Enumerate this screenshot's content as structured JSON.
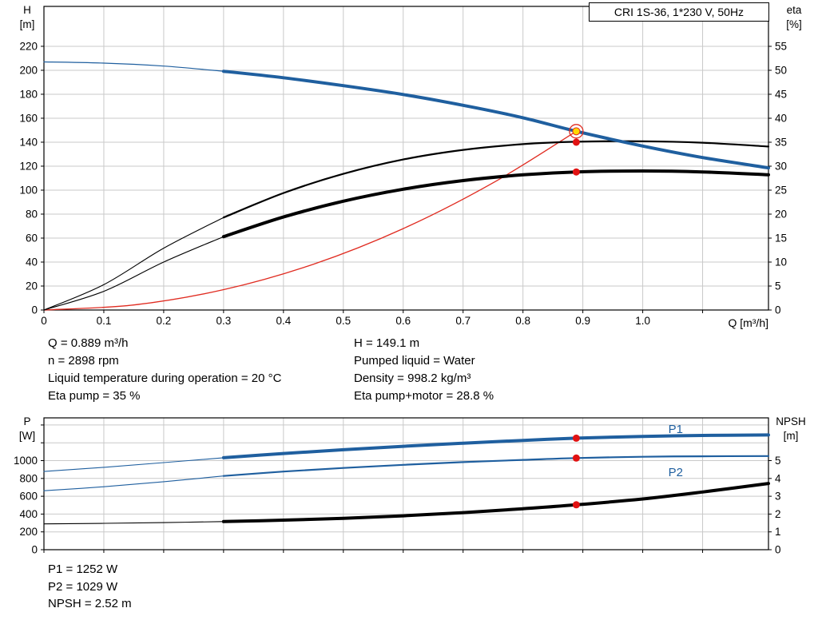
{
  "colors": {
    "curve_blue": "#1f5f9f",
    "curve_black": "#000000",
    "curve_red": "#e02b20",
    "marker_red": "#e11212",
    "marker_yellow": "#ffd800",
    "grid": "#c9c9c9",
    "axis": "#000000"
  },
  "top_info": {
    "left": [
      "Q = 0.889 m³/h",
      "n = 2898 rpm",
      "Liquid temperature during operation = 20 °C",
      "Eta pump = 35 %"
    ],
    "right": [
      "H = 149.1 m",
      "Pumped liquid = Water",
      "Density = 998.2 kg/m³",
      "Eta pump+motor = 28.8 %"
    ]
  },
  "bottom_info": [
    "P1 = 1252 W",
    "P2 = 1029 W",
    "NPSH = 2.52 m"
  ],
  "chart_data": [
    {
      "name": "hq-eta-chart",
      "type": "line",
      "title": "CRI 1S-36, 1*230 V, 50Hz",
      "xlabel": "Q [m³/h]",
      "ylabel_left": [
        "H",
        "[m]"
      ],
      "ylabel_right": [
        "eta",
        "[%]"
      ],
      "xlim": [
        0,
        1.21
      ],
      "ylim_left": [
        0,
        253.3
      ],
      "ylim_right": [
        0,
        63.33
      ],
      "grid": true,
      "legend": "none",
      "xticks": [
        {
          "v": 0,
          "l": "0"
        },
        {
          "v": 0.1,
          "l": "0.1"
        },
        {
          "v": 0.2,
          "l": "0.2"
        },
        {
          "v": 0.3,
          "l": "0.3"
        },
        {
          "v": 0.4,
          "l": "0.4"
        },
        {
          "v": 0.5,
          "l": "0.5"
        },
        {
          "v": 0.6,
          "l": "0.6"
        },
        {
          "v": 0.7,
          "l": "0.7"
        },
        {
          "v": 0.8,
          "l": "0.8"
        },
        {
          "v": 0.9,
          "l": "0.9"
        },
        {
          "v": 1.0,
          "l": "1.0"
        },
        {
          "v": 1.1,
          "l": ""
        }
      ],
      "yticks_left": [
        {
          "v": 0,
          "l": "0"
        },
        {
          "v": 20,
          "l": "20"
        },
        {
          "v": 40,
          "l": "40"
        },
        {
          "v": 60,
          "l": "60"
        },
        {
          "v": 80,
          "l": "80"
        },
        {
          "v": 100,
          "l": "100"
        },
        {
          "v": 120,
          "l": "120"
        },
        {
          "v": 140,
          "l": "140"
        },
        {
          "v": 160,
          "l": "160"
        },
        {
          "v": 180,
          "l": "180"
        },
        {
          "v": 200,
          "l": "200"
        },
        {
          "v": 220,
          "l": "220"
        }
      ],
      "yticks_right": [
        {
          "v": 0,
          "l": "0"
        },
        {
          "v": 5,
          "l": "5"
        },
        {
          "v": 10,
          "l": "10"
        },
        {
          "v": 15,
          "l": "15"
        },
        {
          "v": 20,
          "l": "20"
        },
        {
          "v": 25,
          "l": "25"
        },
        {
          "v": 30,
          "l": "30"
        },
        {
          "v": 35,
          "l": "35"
        },
        {
          "v": 40,
          "l": "40"
        },
        {
          "v": 45,
          "l": "45"
        },
        {
          "v": 50,
          "l": "50"
        },
        {
          "v": 55,
          "l": "55"
        }
      ],
      "series": [
        {
          "name": "system-curve",
          "axis": "left",
          "color": "#e02b20",
          "width": 1.3,
          "points": [
            [
              0,
              0
            ],
            [
              0.15,
              4.2
            ],
            [
              0.3,
              17
            ],
            [
              0.45,
              38.2
            ],
            [
              0.6,
              67.9
            ],
            [
              0.75,
              106.1
            ],
            [
              0.889,
              149.1
            ]
          ]
        },
        {
          "name": "eta-pump-curve-thin",
          "axis": "right",
          "color": "#000000",
          "width": 1.1,
          "points": [
            [
              0,
              0
            ],
            [
              0.1,
              5.3
            ],
            [
              0.2,
              12.9
            ],
            [
              0.3,
              19.3
            ]
          ]
        },
        {
          "name": "eta-pump-curve",
          "axis": "right",
          "color": "#000000",
          "width": 2.2,
          "points": [
            [
              0.3,
              19.3
            ],
            [
              0.4,
              24.4
            ],
            [
              0.5,
              28.4
            ],
            [
              0.6,
              31.4
            ],
            [
              0.7,
              33.4
            ],
            [
              0.8,
              34.6
            ],
            [
              0.889,
              35.1
            ],
            [
              1.0,
              35.2
            ],
            [
              1.1,
              34.9
            ],
            [
              1.21,
              34.1
            ]
          ]
        },
        {
          "name": "eta-pump-motor-curve-thin",
          "axis": "right",
          "color": "#000000",
          "width": 1.1,
          "points": [
            [
              0,
              0
            ],
            [
              0.1,
              3.9
            ],
            [
              0.2,
              10
            ],
            [
              0.3,
              15.3
            ]
          ]
        },
        {
          "name": "eta-pump-motor-curve",
          "axis": "right",
          "color": "#000000",
          "width": 4,
          "points": [
            [
              0.3,
              15.3
            ],
            [
              0.4,
              19.4
            ],
            [
              0.5,
              22.7
            ],
            [
              0.6,
              25.2
            ],
            [
              0.7,
              27.0
            ],
            [
              0.8,
              28.2
            ],
            [
              0.889,
              28.8
            ],
            [
              1.0,
              29.0
            ],
            [
              1.1,
              28.8
            ],
            [
              1.21,
              28.2
            ]
          ]
        },
        {
          "name": "hq-curve-thin",
          "axis": "left",
          "color": "#1f5f9f",
          "width": 1.2,
          "points": [
            [
              0,
              207
            ],
            [
              0.1,
              206
            ],
            [
              0.2,
              203.5
            ],
            [
              0.3,
              199.2
            ]
          ]
        },
        {
          "name": "hq-curve",
          "axis": "left",
          "color": "#1f5f9f",
          "width": 4,
          "points": [
            [
              0.3,
              199.2
            ],
            [
              0.4,
              193.8
            ],
            [
              0.5,
              187.2
            ],
            [
              0.6,
              179.8
            ],
            [
              0.7,
              170.8
            ],
            [
              0.8,
              160.4
            ],
            [
              0.889,
              149.1
            ],
            [
              1.0,
              136.8
            ],
            [
              1.1,
              127.2
            ],
            [
              1.21,
              118.6
            ]
          ]
        }
      ],
      "markers": [
        {
          "name": "eta-pump-point",
          "x": 0.889,
          "y": 35,
          "axis": "right",
          "style": "dot"
        },
        {
          "name": "eta-pump-motor-point",
          "x": 0.889,
          "y": 28.8,
          "axis": "right",
          "style": "dot"
        },
        {
          "name": "duty-point",
          "x": 0.889,
          "y": 149.1,
          "axis": "left",
          "style": "duty"
        }
      ],
      "annotations": []
    },
    {
      "name": "power-npsh-chart",
      "type": "line",
      "title": "",
      "xlabel": "",
      "ylabel_left": [
        "P",
        "[W]"
      ],
      "ylabel_right": [
        "NPSH",
        "[m]"
      ],
      "xlim": [
        0,
        1.21
      ],
      "ylim_left": [
        0,
        1480
      ],
      "ylim_right": [
        0,
        7.4
      ],
      "grid": true,
      "legend": "inline",
      "xticks": [
        {
          "v": 0,
          "l": ""
        },
        {
          "v": 0.1,
          "l": ""
        },
        {
          "v": 0.2,
          "l": ""
        },
        {
          "v": 0.3,
          "l": ""
        },
        {
          "v": 0.4,
          "l": ""
        },
        {
          "v": 0.5,
          "l": ""
        },
        {
          "v": 0.6,
          "l": ""
        },
        {
          "v": 0.7,
          "l": ""
        },
        {
          "v": 0.8,
          "l": ""
        },
        {
          "v": 0.9,
          "l": ""
        },
        {
          "v": 1.0,
          "l": ""
        },
        {
          "v": 1.1,
          "l": ""
        }
      ],
      "yticks_left": [
        {
          "v": 0,
          "l": "0"
        },
        {
          "v": 200,
          "l": "200"
        },
        {
          "v": 400,
          "l": "400"
        },
        {
          "v": 600,
          "l": "600"
        },
        {
          "v": 800,
          "l": "800"
        },
        {
          "v": 1000,
          "l": "1000"
        },
        {
          "v": 1200,
          "l": ""
        },
        {
          "v": 1400,
          "l": ""
        }
      ],
      "yticks_right": [
        {
          "v": 0,
          "l": "0"
        },
        {
          "v": 1,
          "l": "1"
        },
        {
          "v": 2,
          "l": "2"
        },
        {
          "v": 3,
          "l": "3"
        },
        {
          "v": 4,
          "l": "4"
        },
        {
          "v": 5,
          "l": "5"
        }
      ],
      "series": [
        {
          "name": "p1-curve-thin",
          "axis": "left",
          "color": "#1f5f9f",
          "width": 1.1,
          "points": [
            [
              0,
              878
            ],
            [
              0.1,
              925
            ],
            [
              0.2,
              978
            ],
            [
              0.3,
              1032
            ]
          ]
        },
        {
          "name": "p1-curve",
          "axis": "left",
          "color": "#1f5f9f",
          "width": 4,
          "points": [
            [
              0.3,
              1032
            ],
            [
              0.4,
              1080
            ],
            [
              0.5,
              1122
            ],
            [
              0.6,
              1161
            ],
            [
              0.7,
              1196
            ],
            [
              0.8,
              1227
            ],
            [
              0.889,
              1252
            ],
            [
              1.0,
              1272
            ],
            [
              1.1,
              1283
            ],
            [
              1.21,
              1288
            ]
          ]
        },
        {
          "name": "p2-curve-thin",
          "axis": "left",
          "color": "#1f5f9f",
          "width": 1.1,
          "points": [
            [
              0,
              662
            ],
            [
              0.1,
              707
            ],
            [
              0.2,
              763
            ],
            [
              0.3,
              828
            ]
          ]
        },
        {
          "name": "p2-curve",
          "axis": "left",
          "color": "#1f5f9f",
          "width": 2.2,
          "points": [
            [
              0.3,
              828
            ],
            [
              0.4,
              877
            ],
            [
              0.5,
              918
            ],
            [
              0.6,
              953
            ],
            [
              0.7,
              983
            ],
            [
              0.8,
              1008
            ],
            [
              0.889,
              1029
            ],
            [
              1.0,
              1043
            ],
            [
              1.1,
              1049
            ],
            [
              1.21,
              1051
            ]
          ]
        },
        {
          "name": "npsh-curve-thin",
          "axis": "right",
          "color": "#000000",
          "width": 1.1,
          "points": [
            [
              0,
              1.45
            ],
            [
              0.1,
              1.48
            ],
            [
              0.2,
              1.52
            ],
            [
              0.3,
              1.58
            ]
          ]
        },
        {
          "name": "npsh-curve",
          "axis": "right",
          "color": "#000000",
          "width": 4,
          "points": [
            [
              0.3,
              1.58
            ],
            [
              0.4,
              1.66
            ],
            [
              0.5,
              1.76
            ],
            [
              0.6,
              1.9
            ],
            [
              0.7,
              2.08
            ],
            [
              0.8,
              2.3
            ],
            [
              0.889,
              2.52
            ],
            [
              1.0,
              2.85
            ],
            [
              1.1,
              3.24
            ],
            [
              1.21,
              3.72
            ]
          ]
        }
      ],
      "markers": [
        {
          "name": "p1-point",
          "x": 0.889,
          "y": 1252,
          "axis": "left",
          "style": "dot"
        },
        {
          "name": "p2-point",
          "x": 0.889,
          "y": 1029,
          "axis": "left",
          "style": "dot"
        },
        {
          "name": "npsh-point",
          "x": 0.889,
          "y": 2.52,
          "axis": "right",
          "style": "dot"
        }
      ],
      "annotations": [
        {
          "text": "P1",
          "x": 1.055,
          "y": 1310,
          "axis": "left",
          "color": "#1f5f9f"
        },
        {
          "text": "P2",
          "x": 1.055,
          "y": 825,
          "axis": "left",
          "color": "#1f5f9f"
        }
      ]
    }
  ]
}
